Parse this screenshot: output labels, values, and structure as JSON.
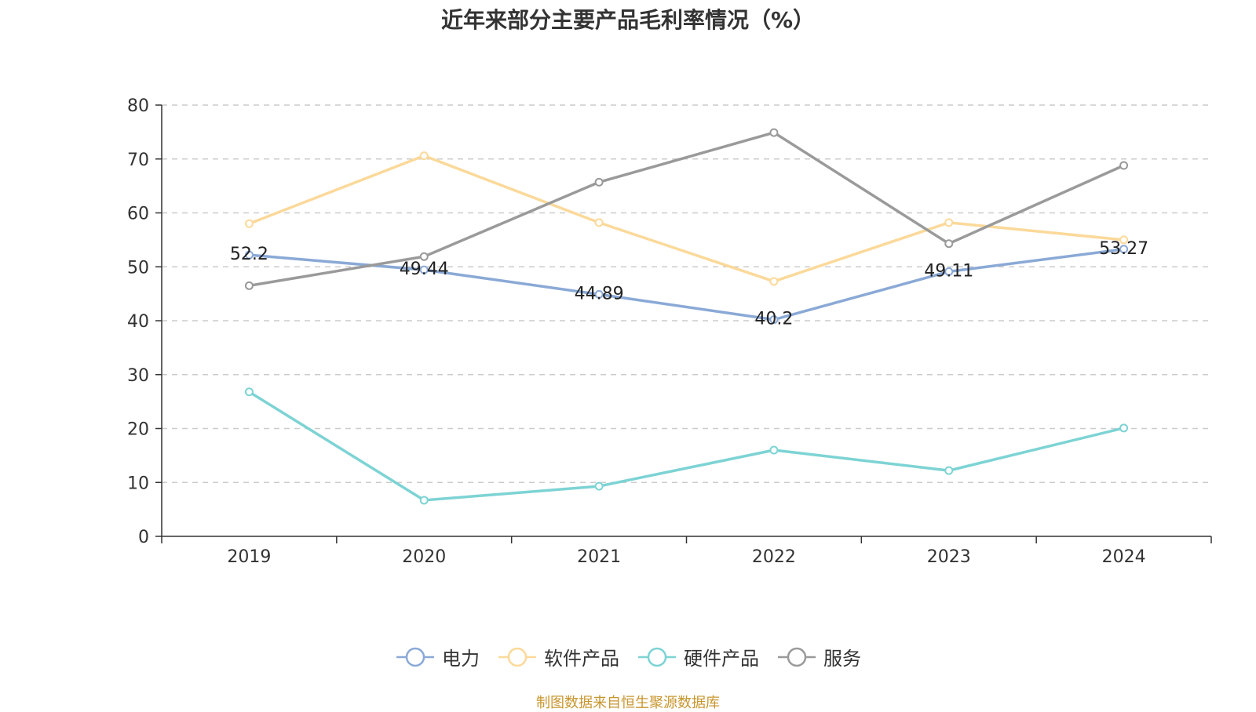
{
  "chart_data": {
    "type": "line",
    "title": "近年来部分主要产品毛利率情况（%）",
    "xlabel": "",
    "ylabel": "",
    "categories": [
      "2019",
      "2020",
      "2021",
      "2022",
      "2023",
      "2024"
    ],
    "ylim": [
      0,
      80
    ],
    "yticks": [
      0,
      10,
      20,
      30,
      40,
      50,
      60,
      70,
      80
    ],
    "grid": true,
    "legend_position": "bottom-center",
    "series": [
      {
        "name": "电力",
        "values": [
          52.2,
          49.44,
          44.89,
          40.2,
          49.11,
          53.27
        ],
        "color": "#8aa9d6",
        "show_labels": true
      },
      {
        "name": "软件产品",
        "values": [
          58.0,
          70.6,
          58.2,
          47.3,
          58.2,
          55.0
        ],
        "color": "#fbd99a",
        "show_labels": false
      },
      {
        "name": "硬件产品",
        "values": [
          26.8,
          6.7,
          9.3,
          16.0,
          12.2,
          20.1
        ],
        "color": "#7dd3d4",
        "show_labels": false
      },
      {
        "name": "服务",
        "values": [
          46.5,
          51.9,
          65.7,
          74.9,
          54.3,
          68.8
        ],
        "color": "#9a9a9a",
        "show_labels": false
      }
    ]
  },
  "source_note": "制图数据来自恒生聚源数据库"
}
